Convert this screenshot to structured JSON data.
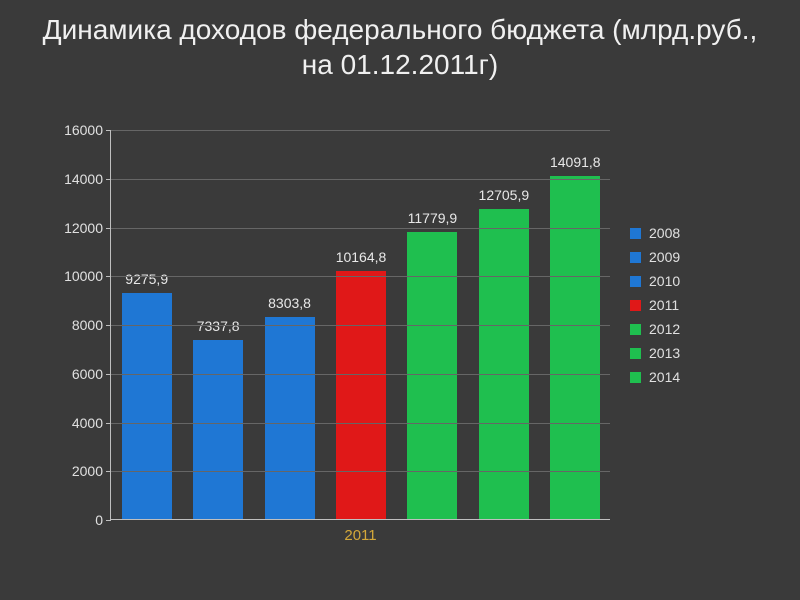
{
  "title": "Динамика доходов федерального бюджета (млрд.руб., на 01.12.2011г)",
  "chart": {
    "type": "bar",
    "background_color": "#3a3a3a",
    "grid_color": "#666666",
    "axis_color": "#bfbfbf",
    "text_color": "#e0e0e0",
    "title_fontsize": 28,
    "label_fontsize": 14,
    "ylim": [
      0,
      16000
    ],
    "ytick_step": 2000,
    "yticks": [
      0,
      2000,
      4000,
      6000,
      8000,
      10000,
      12000,
      14000,
      16000
    ],
    "bar_width": 0.7,
    "xaxis_label": "2011",
    "xaxis_label_color": "#d4a83a",
    "categories": [
      "2008",
      "2009",
      "2010",
      "2011",
      "2012",
      "2013",
      "2014"
    ],
    "values": [
      9275.9,
      7337.8,
      8303.8,
      10164.8,
      11779.9,
      12705.9,
      14091.8
    ],
    "value_labels": [
      "9275,9",
      "7337,8",
      "8303,8",
      "10164,8",
      "11779,9",
      "12705,9",
      "14091,8"
    ],
    "bar_colors": [
      "#1f77d4",
      "#1f77d4",
      "#1f77d4",
      "#e01818",
      "#1fbf4f",
      "#1fbf4f",
      "#1fbf4f"
    ],
    "legend": [
      {
        "label": "2008",
        "color": "#1f77d4"
      },
      {
        "label": "2009",
        "color": "#1f77d4"
      },
      {
        "label": "2010",
        "color": "#1f77d4"
      },
      {
        "label": "2011",
        "color": "#e01818"
      },
      {
        "label": "2012",
        "color": "#1fbf4f"
      },
      {
        "label": "2013",
        "color": "#1fbf4f"
      },
      {
        "label": "2014",
        "color": "#1fbf4f"
      }
    ]
  }
}
